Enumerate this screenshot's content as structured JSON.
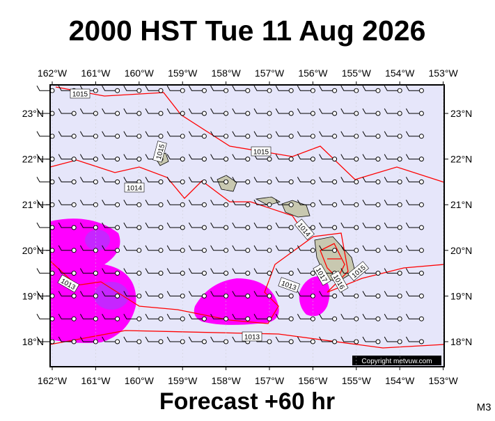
{
  "header": {
    "title": "2000 HST Tue 11 Aug 2026"
  },
  "footer": {
    "forecast": "Forecast +60 hr",
    "code": "M3"
  },
  "copyright": "Copyright metvuw.com",
  "lon_ticks": [
    {
      "value": -162,
      "label": "162°W"
    },
    {
      "value": -161,
      "label": "161°W"
    },
    {
      "value": -160,
      "label": "160°W"
    },
    {
      "value": -159,
      "label": "159°W"
    },
    {
      "value": -158,
      "label": "158°W"
    },
    {
      "value": -157,
      "label": "157°W"
    },
    {
      "value": -156,
      "label": "156°W"
    },
    {
      "value": -155,
      "label": "155°W"
    },
    {
      "value": -154,
      "label": "154°W"
    },
    {
      "value": -153,
      "label": "153°W"
    }
  ],
  "lat_ticks": [
    {
      "value": 23,
      "label": "23°N"
    },
    {
      "value": 22,
      "label": "22°N"
    },
    {
      "value": 21,
      "label": "21°N"
    },
    {
      "value": 20,
      "label": "20°N"
    },
    {
      "value": 19,
      "label": "19°N"
    },
    {
      "value": 18,
      "label": "18°N"
    }
  ],
  "isobars": [
    {
      "label": 1015
    },
    {
      "label": 1015
    },
    {
      "label": 1015
    },
    {
      "label": 1014
    },
    {
      "label": 1014
    },
    {
      "label": 1013
    },
    {
      "label": 1013
    },
    {
      "label": 1013
    },
    {
      "label": 1017
    },
    {
      "label": 1016
    },
    {
      "label": 1015
    }
  ]
}
